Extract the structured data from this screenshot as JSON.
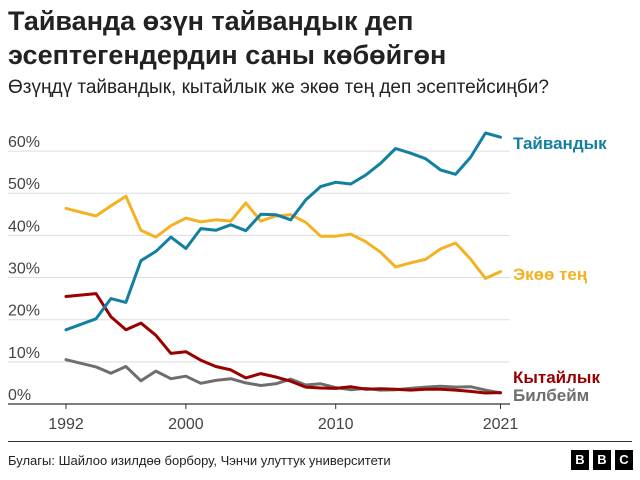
{
  "header": {
    "title": "Тайванда өзүн тайвандык деп эсептегендердин саны көбөйгөн",
    "subtitle": "Өзүңдү тайвандык, кытайлык же экөө тең деп эсептейсиңби?"
  },
  "footer": {
    "source": "Булагы: Шайлоо изилдөө борбору, Чэнчи улуттук университети",
    "logo_letters": [
      "B",
      "B",
      "C"
    ]
  },
  "chart_data": {
    "type": "line",
    "title": "Тайванда өзүн тайвандык деп эсептегендердин саны көбөйгөн",
    "subtitle": "Өзүңдү тайвандык, кытайлык же экөө тең деп эсептейсиңби?",
    "xlabel": "",
    "ylabel": "",
    "xlim": [
      1992,
      2021.5
    ],
    "ylim": [
      0,
      65
    ],
    "x_ticks": [
      1992,
      2000,
      2010,
      2021
    ],
    "x_tick_labels": [
      "1992",
      "2000",
      "2010",
      "2021"
    ],
    "y_ticks": [
      0,
      10,
      20,
      30,
      40,
      50,
      60
    ],
    "y_tick_labels": [
      "0%",
      "10%",
      "20%",
      "30%",
      "40%",
      "50%",
      "60%"
    ],
    "grid": "horizontal",
    "legend": "direct labels at line ends",
    "x": [
      1992,
      1994,
      1995,
      1996,
      1997,
      1998,
      1999,
      2000,
      2001,
      2002,
      2003,
      2004,
      2005,
      2006,
      2007,
      2008,
      2009,
      2010,
      2011,
      2012,
      2013,
      2014,
      2015,
      2016,
      2017,
      2018,
      2019,
      2020,
      2021
    ],
    "series": [
      {
        "name": "Тайвандык",
        "color": "#1380a1",
        "values": [
          17.6,
          20.2,
          25.0,
          24.1,
          34.0,
          36.2,
          39.6,
          36.9,
          41.6,
          41.2,
          42.5,
          41.1,
          45.0,
          44.9,
          43.7,
          48.4,
          51.6,
          52.6,
          52.2,
          54.3,
          57.1,
          60.6,
          59.5,
          58.2,
          55.5,
          54.5,
          58.5,
          64.3,
          63.3
        ]
      },
      {
        "name": "Экөө тең",
        "color": "#f3b221",
        "values": [
          46.4,
          44.6,
          47.0,
          49.3,
          41.2,
          39.6,
          42.3,
          44.1,
          43.2,
          43.7,
          43.4,
          47.7,
          43.4,
          44.6,
          44.9,
          43.1,
          39.8,
          39.8,
          40.3,
          38.5,
          36.0,
          32.5,
          33.5,
          34.3,
          36.8,
          38.2,
          34.4,
          29.8,
          31.4
        ]
      },
      {
        "name": "Кытайлык",
        "color": "#990000",
        "values": [
          25.5,
          26.2,
          20.7,
          17.6,
          19.2,
          16.3,
          12.0,
          12.4,
          10.4,
          8.9,
          8.1,
          6.2,
          7.2,
          6.4,
          5.4,
          4.0,
          3.8,
          3.7,
          4.1,
          3.5,
          3.6,
          3.5,
          3.3,
          3.5,
          3.5,
          3.3,
          3.0,
          2.6,
          2.7
        ]
      },
      {
        "name": "Билбейм",
        "color": "#6e6e6e",
        "values": [
          10.5,
          8.8,
          7.3,
          8.9,
          5.5,
          7.8,
          6.0,
          6.6,
          4.9,
          5.6,
          6.0,
          5.0,
          4.4,
          4.8,
          5.9,
          4.5,
          4.8,
          3.9,
          3.4,
          3.7,
          3.3,
          3.4,
          3.7,
          4.0,
          4.2,
          4.0,
          4.1,
          3.3,
          2.6
        ]
      }
    ]
  }
}
